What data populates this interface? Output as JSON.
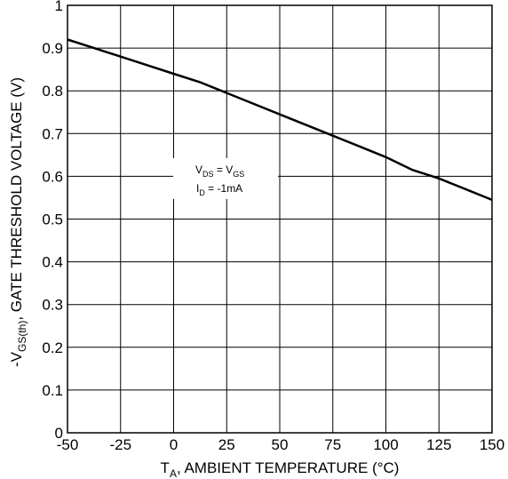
{
  "chart_data": {
    "type": "line",
    "xlabel_main": "T",
    "xlabel_sub": "A",
    "xlabel_rest": ", AMBIENT TEMPERATURE (°C)",
    "ylabel_pre": "-V",
    "ylabel_sub": "GS(th)",
    "ylabel_rest": ", GATE THRESHOLD VOLTAGE (V)",
    "xlim": [
      -50,
      150
    ],
    "ylim": [
      0,
      1
    ],
    "x_ticks": [
      "-50",
      "-25",
      "0",
      "25",
      "50",
      "75",
      "100",
      "125",
      "150"
    ],
    "y_ticks": [
      "0",
      "0.1",
      "0.2",
      "0.3",
      "0.4",
      "0.5",
      "0.6",
      "0.7",
      "0.8",
      "0.9",
      "1"
    ],
    "grid": true,
    "annotation": {
      "line1_a": "V",
      "line1_a_sub": "DS",
      "line1_eq": " = V",
      "line1_b_sub": "GS",
      "line2_a": "I",
      "line2_a_sub": "D",
      "line2_eq": " = -1mA"
    },
    "series": [
      {
        "x": [
          -50,
          -37.5,
          -25,
          -12.5,
          0,
          12.5,
          25,
          37.5,
          50,
          62.5,
          75,
          87.5,
          100,
          112.5,
          125,
          137.5,
          150
        ],
        "y": [
          0.92,
          0.9,
          0.88,
          0.86,
          0.84,
          0.82,
          0.795,
          0.77,
          0.745,
          0.72,
          0.695,
          0.67,
          0.645,
          0.615,
          0.595,
          0.57,
          0.545
        ]
      }
    ]
  }
}
